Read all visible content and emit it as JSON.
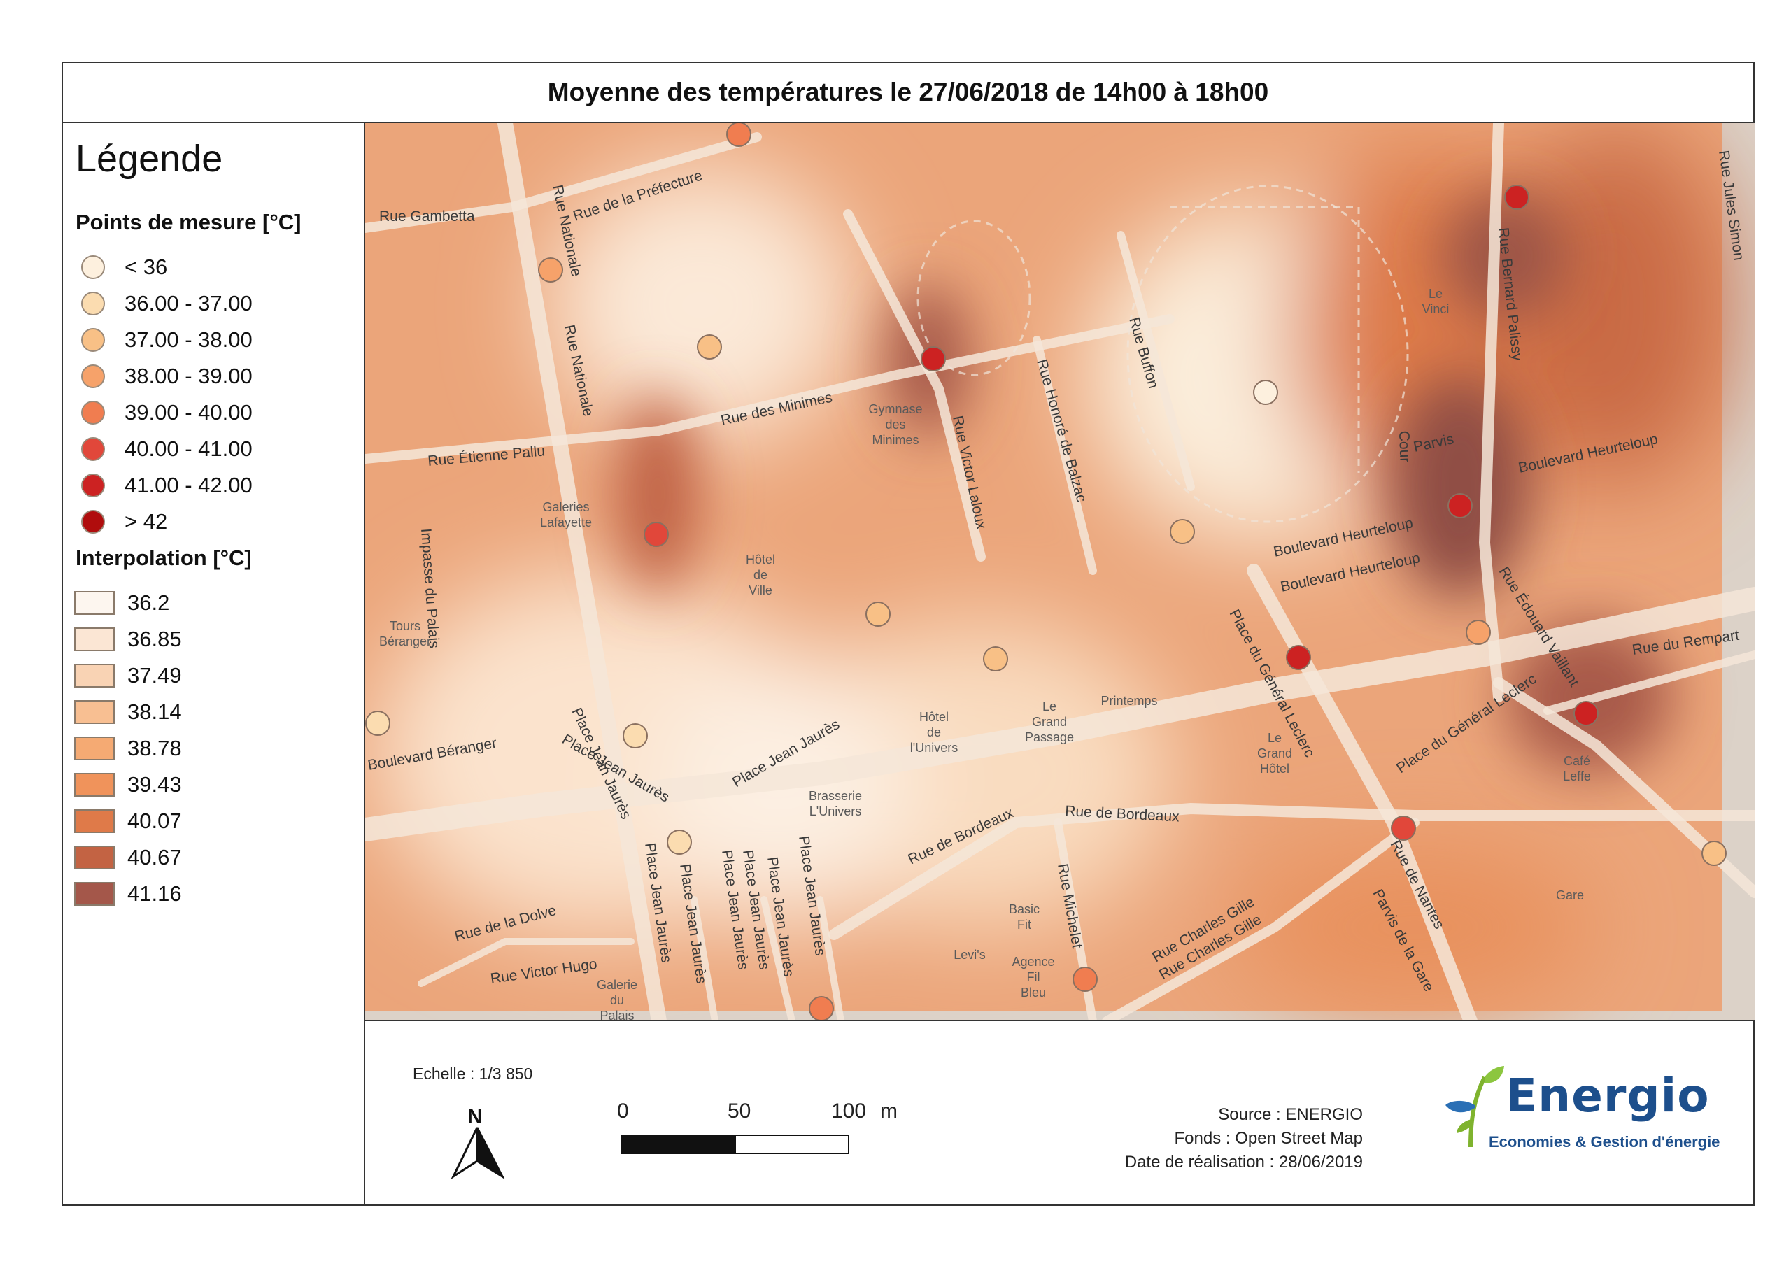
{
  "title": "Moyenne des températures le 27/06/2018 de 14h00 à 18h00",
  "legend": {
    "heading": "Légende",
    "points_heading": "Points de mesure [°C]",
    "points": [
      {
        "label": "< 36",
        "color": "#fdf0de"
      },
      {
        "label": "36.00 - 37.00",
        "color": "#fbdcb0"
      },
      {
        "label": "37.00 - 38.00",
        "color": "#f8c086"
      },
      {
        "label": "38.00 - 39.00",
        "color": "#f6a26a"
      },
      {
        "label": "39.00 - 40.00",
        "color": "#f07d50"
      },
      {
        "label": "40.00 - 41.00",
        "color": "#e1473a"
      },
      {
        "label": "41.00 - 42.00",
        "color": "#cc2222"
      },
      {
        "label": "> 42",
        "color": "#b00d0d"
      }
    ],
    "interp_heading": "Interpolation [°C]",
    "interpolation": [
      {
        "label": "36.2",
        "color": "#fdf6ef"
      },
      {
        "label": "36.85",
        "color": "#fbe6d4"
      },
      {
        "label": "37.49",
        "color": "#f9d3b4"
      },
      {
        "label": "38.14",
        "color": "#f8bf92"
      },
      {
        "label": "38.78",
        "color": "#f5aa73"
      },
      {
        "label": "39.43",
        "color": "#f0935b"
      },
      {
        "label": "40.07",
        "color": "#df7a49"
      },
      {
        "label": "40.67",
        "color": "#c36343"
      },
      {
        "label": "41.16",
        "color": "#a4574a"
      }
    ]
  },
  "map": {
    "streets": [
      "Rue de la Préfecture",
      "Rue Gambetta",
      "Rue Nationale",
      "Rue Nationale",
      "Rue des Minimes",
      "Rue Étienne Pallu",
      "Rue Victor Laloux",
      "Rue Honoré de Balzac",
      "Rue Buffon",
      "Rue Bernard Palissy",
      "Rue Jules Simon",
      "Boulevard Heurteloup",
      "Boulevard Heurteloup",
      "Boulevard Heurteloup",
      "Cour",
      "Parvis",
      "Impasse du Palais",
      "Boulevard Béranger",
      "Place Jean Jaurès",
      "Place Jean Jaurès",
      "Place Jean Jaurès",
      "Place Jean Jaurès",
      "Place Jean Jaurès",
      "Place Jean Jaurès",
      "Place Jean Jaurès",
      "Place Jean Jaurès",
      "Place Jean Jaurès",
      "Rue de Bordeaux",
      "Rue de Bordeaux",
      "Rue Michelet",
      "Place du Général Leclerc",
      "Place du Général Leclerc",
      "Rue Édouard Vaillant",
      "Rue du Rempart",
      "Rue de Nantes",
      "Parvis de la Gare",
      "Rue Charles Gille",
      "Rue Charles Gille",
      "Rue de la Dolve",
      "Rue Victor Hugo"
    ],
    "places": [
      "Gymnase des Minimes",
      "Galeries Lafayette",
      "Hôtel de Ville",
      "Tours Béranger",
      "Le Vinci",
      "Hôtel de l'Univers",
      "Le Grand Passage",
      "Printemps",
      "Le Grand Hôtel",
      "Café Leffe",
      "Brasserie L'Univers",
      "Basic Fit",
      "Levi's",
      "Agence Fil Bleu",
      "Gare",
      "Galerie du Palais"
    ],
    "measure_points": [
      {
        "temp_class": 4,
        "color": "#f07d50"
      },
      {
        "temp_class": 3,
        "color": "#f6a26a"
      },
      {
        "temp_class": 2,
        "color": "#f8c086"
      },
      {
        "temp_class": 6,
        "color": "#cc2222"
      },
      {
        "temp_class": 6,
        "color": "#cc2222"
      },
      {
        "temp_class": 0,
        "color": "#fdf0de"
      },
      {
        "temp_class": 5,
        "color": "#e1473a"
      },
      {
        "temp_class": 2,
        "color": "#f8c086"
      },
      {
        "temp_class": 6,
        "color": "#cc2222"
      },
      {
        "temp_class": 2,
        "color": "#f8c086"
      },
      {
        "temp_class": 1,
        "color": "#fbdcb0"
      },
      {
        "temp_class": 1,
        "color": "#fbdcb0"
      },
      {
        "temp_class": 3,
        "color": "#f6a26a"
      },
      {
        "temp_class": 6,
        "color": "#cc2222"
      },
      {
        "temp_class": 2,
        "color": "#f8c086"
      },
      {
        "temp_class": 6,
        "color": "#cc2222"
      },
      {
        "temp_class": 5,
        "color": "#e1473a"
      },
      {
        "temp_class": 1,
        "color": "#fbdcb0"
      },
      {
        "temp_class": 4,
        "color": "#f07d50"
      },
      {
        "temp_class": 4,
        "color": "#f07d50"
      },
      {
        "temp_class": 2,
        "color": "#f8c086"
      }
    ]
  },
  "scale": {
    "label": "Echelle : 1/3 850",
    "ticks": [
      "0",
      "50",
      "100"
    ],
    "unit": "m"
  },
  "credits": {
    "source": "Source : ENERGIO",
    "fonds": "Fonds : Open Street Map",
    "date": "Date de réalisation : 28/06/2019"
  },
  "logo": {
    "name": "Energio",
    "tagline": "Economies & Gestion d'énergie"
  }
}
